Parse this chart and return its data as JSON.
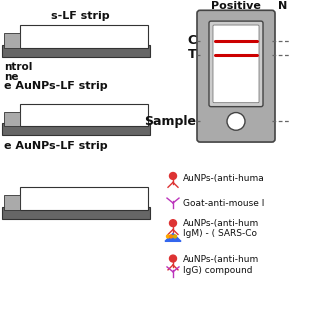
{
  "bg_color": "#ffffff",
  "strip_dark": "#666666",
  "strip_light": "#aaaaaa",
  "strip_white": "#ffffff",
  "strip_border": "#333333",
  "red_line": "#cc0000",
  "cassette_gray": "#aaaaaa",
  "cassette_border": "#444444",
  "cassette_inner": "#cccccc",
  "cassette_white": "#ffffff",
  "text_color": "#111111",
  "dash_color": "#666666",
  "legend_red": "#dd3333",
  "legend_purple": "#bb33bb",
  "legend_blue": "#3366ee",
  "strip1_label": "s-LF strip",
  "strip2_labels": [
    "ntrol",
    "ne",
    "e AuNPs-LF strip"
  ],
  "strip3_label": "e AuNPs-LF strip",
  "positive_label": "Positive",
  "N_label": "N",
  "C_label": "C",
  "T_label": "T",
  "sample_label": "Sample",
  "legend_row1": "AuNPs-(anti-huma",
  "legend_row2": "Goat-anti-mouse I",
  "legend_row3a": "AuNPs-(anti-hum",
  "legend_row3b": "IgM) - ( SARS-Co",
  "legend_row4a": "AuNPs-(anti-hum",
  "legend_row4b": "IgG) compound"
}
